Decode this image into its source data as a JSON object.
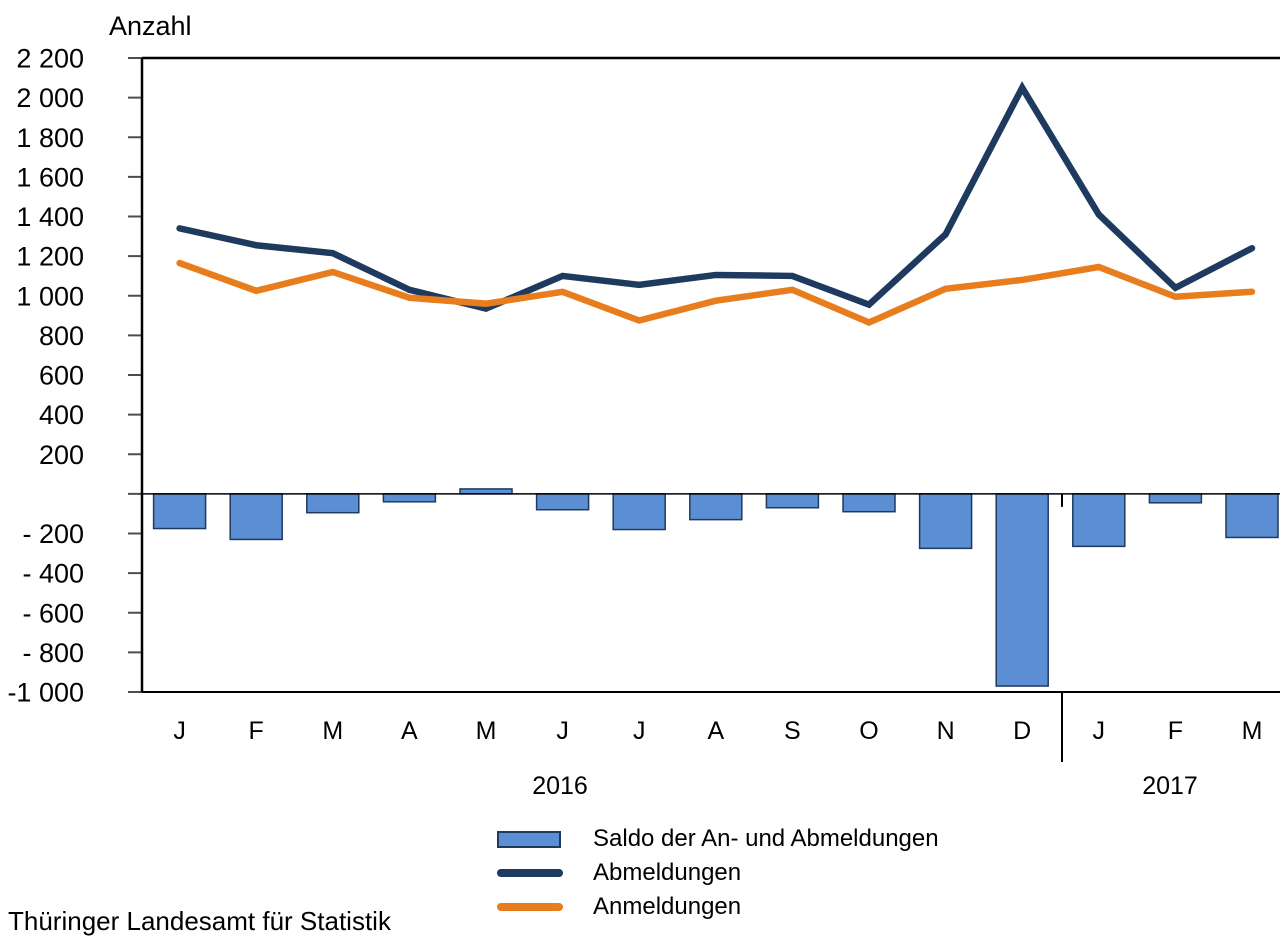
{
  "title": "Anzahl",
  "source": "Thüringer Landesamt für Statistik",
  "colors": {
    "bar_fill": "#5B8ED3",
    "bar_border": "#1E3A5F",
    "abmeldungen_line": "#1E3A5F",
    "anmeldungen_line": "#E87D1E",
    "axis": "#000000",
    "tick": "#4D4D4D"
  },
  "legend": {
    "items": [
      {
        "label": "Saldo der An- und Abmeldungen",
        "swatch": "bar"
      },
      {
        "label": "Abmeldungen",
        "swatch": "line-dark"
      },
      {
        "label": "Anmeldungen",
        "swatch": "line-orange"
      }
    ]
  },
  "chart_data": {
    "type": "bar+line combo",
    "title": "Anzahl",
    "ylabel": "Anzahl",
    "xlabel": "",
    "ylim": [
      -1000,
      2200
    ],
    "ytick_step": 200,
    "ytick_labels": [
      "2 200",
      "2 000",
      "1 800",
      "1 600",
      "1 400",
      "1 200",
      "1 000",
      "800",
      "600",
      "400",
      "200",
      "",
      "- 200",
      "- 400",
      "- 600",
      "- 800",
      "-1 000"
    ],
    "grid": false,
    "legend_position": "bottom",
    "categories": [
      "J",
      "F",
      "M",
      "A",
      "M",
      "J",
      "J",
      "A",
      "S",
      "O",
      "N",
      "D",
      "J",
      "F",
      "M"
    ],
    "year_groups": [
      {
        "label": "2016",
        "start": 0,
        "end": 11
      },
      {
        "label": "2017",
        "start": 12,
        "end": 14
      }
    ],
    "series": [
      {
        "name": "Saldo der An- und Abmeldungen",
        "type": "bar",
        "values": [
          -175,
          -230,
          -95,
          -40,
          25,
          -80,
          -180,
          -130,
          -70,
          -90,
          -275,
          -970,
          -265,
          -45,
          -220
        ]
      },
      {
        "name": "Abmeldungen",
        "type": "line",
        "values": [
          1340,
          1255,
          1215,
          1030,
          935,
          1100,
          1055,
          1105,
          1100,
          955,
          1310,
          2050,
          1410,
          1040,
          1240
        ]
      },
      {
        "name": "Anmeldungen",
        "type": "line",
        "values": [
          1165,
          1025,
          1120,
          990,
          960,
          1020,
          875,
          975,
          1030,
          865,
          1035,
          1080,
          1145,
          995,
          1020
        ]
      }
    ]
  }
}
